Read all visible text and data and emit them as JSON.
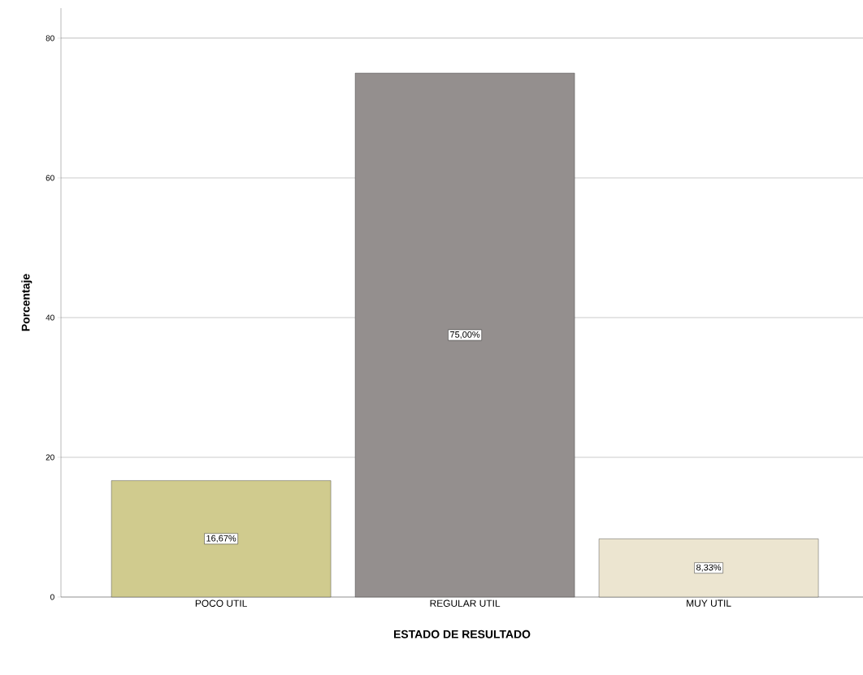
{
  "chart_data": {
    "type": "bar",
    "xlabel": "ESTADO DE RESULTADO",
    "ylabel": "Porcentaje",
    "categories": [
      "POCO UTIL",
      "REGULAR UTIL",
      "MUY UTIL"
    ],
    "values": [
      16.67,
      75,
      8.33
    ],
    "colors": [
      "#d0cb8e",
      "#948f8e",
      "#ece5d0"
    ],
    "value_labels": [
      "16,67%",
      "75,00%",
      "8,33%"
    ],
    "ylim": [
      0,
      84.3
    ],
    "yticks": [
      0,
      20,
      40,
      60,
      80
    ],
    "grid": "y"
  }
}
